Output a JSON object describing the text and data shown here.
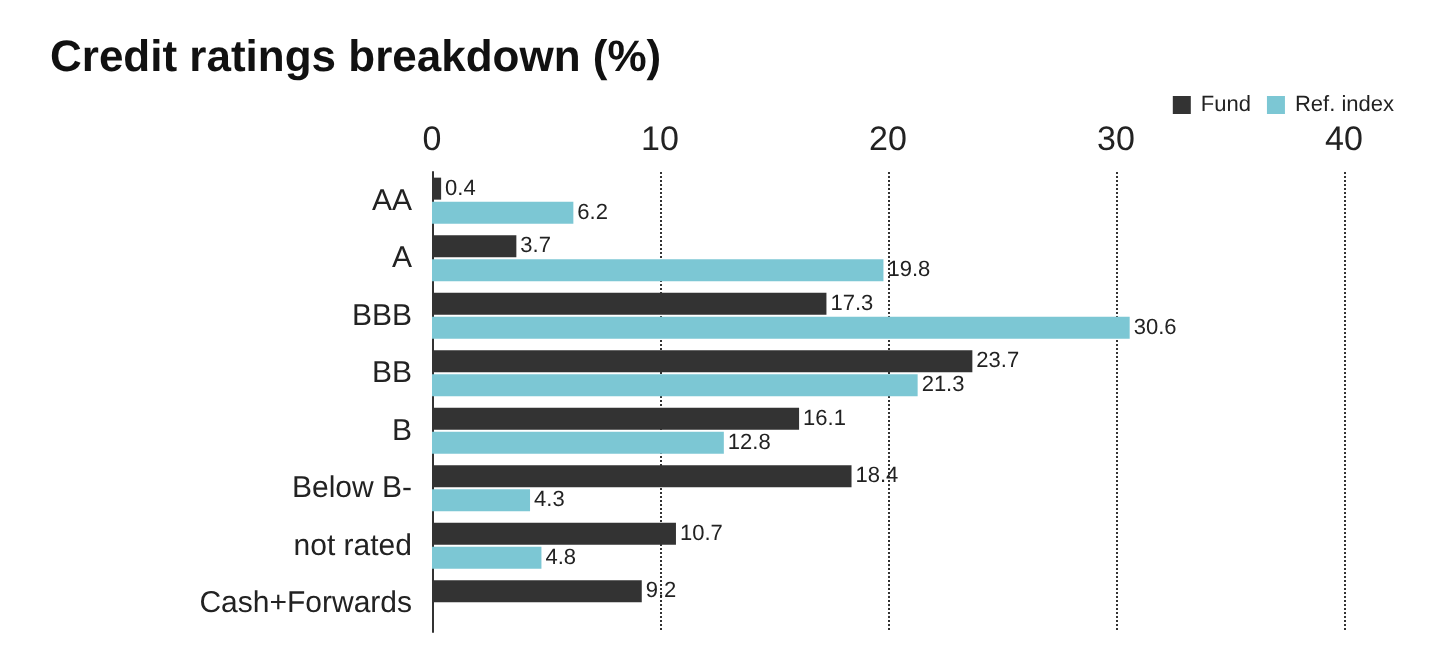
{
  "chart_data": {
    "type": "bar",
    "title": "Credit ratings breakdown (%)",
    "orientation": "horizontal",
    "categories": [
      "AA",
      "A",
      "BBB",
      "BB",
      "B",
      "Below B-",
      "not rated",
      "Cash+Forwards"
    ],
    "series": [
      {
        "name": "Fund",
        "color": "#333333",
        "values": [
          0.4,
          3.7,
          17.3,
          23.7,
          16.1,
          18.4,
          10.7,
          9.2
        ]
      },
      {
        "name": "Ref. index",
        "color": "#7cc7d4",
        "values": [
          6.2,
          19.8,
          30.6,
          21.3,
          12.8,
          4.3,
          4.8,
          null
        ]
      }
    ],
    "xlim": [
      0,
      40
    ],
    "xticks": [
      0,
      10,
      20,
      30,
      40
    ],
    "grid": "x",
    "legend": "top right",
    "data_labels": true
  }
}
